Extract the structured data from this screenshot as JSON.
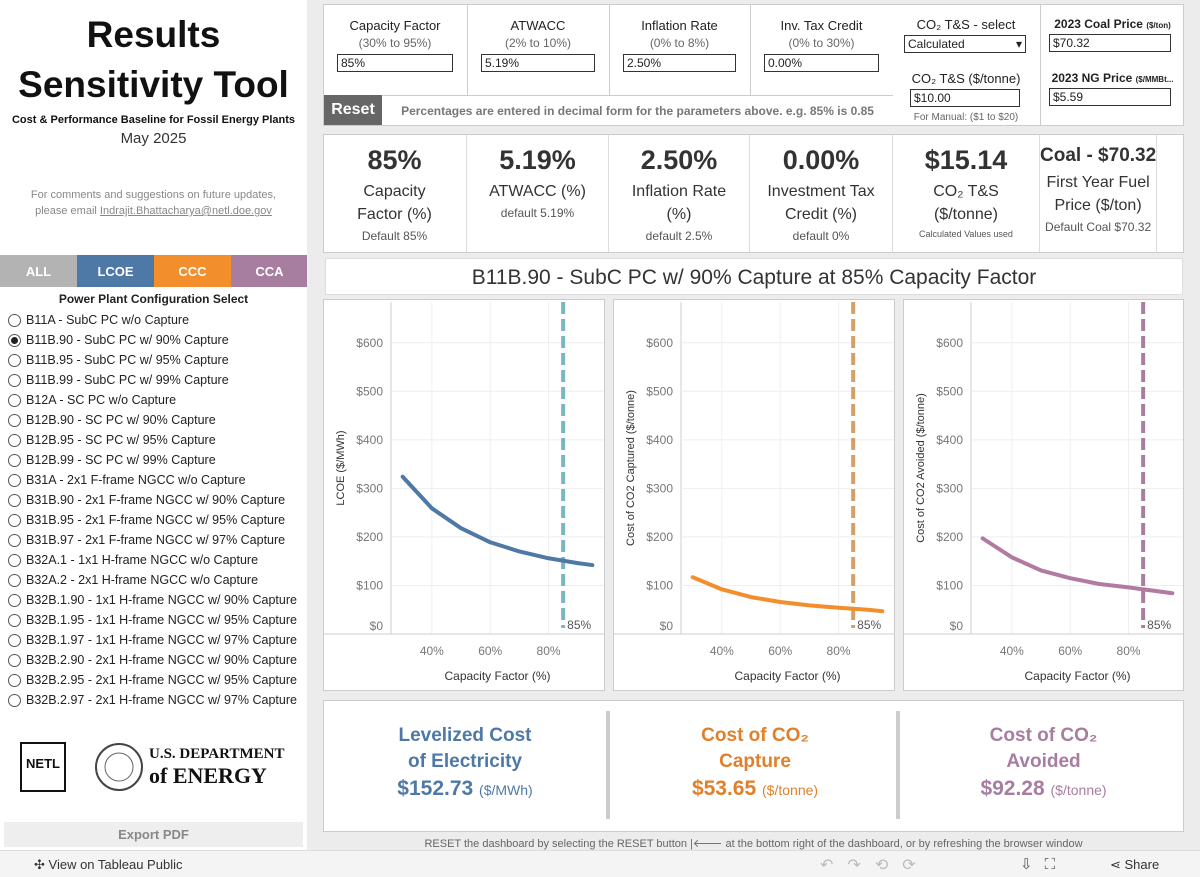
{
  "sidebar": {
    "title_line1": "Results",
    "title_line2": "Sensitivity Tool",
    "subtitle": "Cost & Performance Baseline for Fossil Energy Plants",
    "date": "May 2025",
    "comments": "For comments and suggestions on future updates,",
    "email_prefix": "please email",
    "email": "Indrajit.Bhattacharya@netl.doe.gov",
    "tabs": [
      "ALL",
      "LCOE",
      "CCC",
      "CCA"
    ],
    "config_title": "Power Plant Configuration Select",
    "options": [
      "B11A - SubC PC w/o Capture",
      "B11B.90 - SubC PC w/ 90% Capture",
      "B11B.95 - SubC PC w/ 95% Capture",
      "B11B.99 - SubC PC w/ 99% Capture",
      "B12A - SC PC w/o Capture",
      "B12B.90 - SC PC w/ 90% Capture",
      "B12B.95 - SC PC w/ 95% Capture",
      "B12B.99 - SC PC w/ 99% Capture",
      "B31A - 2x1 F-frame NGCC w/o Capture",
      "B31B.90 - 2x1 F-frame NGCC w/ 90% Capture",
      "B31B.95 - 2x1 F-frame NGCC w/ 95% Capture",
      "B31B.97 - 2x1 F-frame NGCC w/ 97% Capture",
      "B32A.1 - 1x1 H-frame NGCC w/o Capture",
      "B32A.2 - 2x1 H-frame NGCC w/o Capture",
      "B32B.1.90 - 1x1 H-frame NGCC w/ 90% Capture",
      "B32B.1.95 - 1x1 H-frame NGCC w/ 95% Capture",
      "B32B.1.97 - 1x1 H-frame NGCC w/ 97% Capture",
      "B32B.2.90 - 2x1 H-frame NGCC w/ 90% Capture",
      "B32B.2.95 - 2x1 H-frame NGCC w/ 95% Capture",
      "B32B.2.97 - 2x1 H-frame NGCC w/ 97% Capture"
    ],
    "selected": 1,
    "logo_netl": "NETL",
    "doe_line1": "U.S. DEPARTMENT",
    "doe_line2": "of ENERGY",
    "export": "Export PDF"
  },
  "inputs": {
    "fields": [
      {
        "label": "Capacity Factor",
        "range": "(30% to 95%)",
        "value": "85%"
      },
      {
        "label": "ATWACC",
        "range": "(2% to 10%)",
        "value": "5.19%"
      },
      {
        "label": "Inflation Rate",
        "range": "(0% to 8%)",
        "value": "2.50%"
      },
      {
        "label": "Inv. Tax Credit",
        "range": "(0% to 30%)",
        "value": "0.00%"
      }
    ],
    "co2_select_label": "CO₂ T&S - select",
    "co2_select_value": "Calculated",
    "co2_ts_label": "CO₂ T&S ($/tonne)",
    "co2_ts_value": "$10.00",
    "co2_manual_note": "For Manual: ($1 to $20)",
    "coal_label": "2023 Coal Price",
    "coal_unit": "($/ton)",
    "coal_value": "$70.32",
    "ng_label": "2023 NG Price",
    "ng_unit": "($/MMBt...",
    "ng_value": "$5.59",
    "reset": "Reset",
    "note": "Percentages are entered in decimal form for the parameters above. e.g. 85% is 0.85"
  },
  "summary": [
    {
      "value": "85%",
      "label": "Capacity Factor (%)",
      "note": "Default 85%"
    },
    {
      "value": "5.19%",
      "label": "ATWACC (%)",
      "note": "default 5.19%"
    },
    {
      "value": "2.50%",
      "label": "Inflation Rate (%)",
      "note": "default 2.5%"
    },
    {
      "value": "0.00%",
      "label": "Investment Tax Credit (%)",
      "note": "default 0%"
    },
    {
      "value": "$15.14",
      "label": "CO₂ T&S ($/tonne)",
      "note": "Calculated Values used"
    },
    {
      "value": "Coal - $70.32",
      "label": "First Year Fuel Price ($/ton)",
      "note": "Default Coal $70.32"
    }
  ],
  "dashboard_title": "B11B.90 - SubC PC w/ 90% Capture at 85% Capacity Factor",
  "chart_data": [
    {
      "type": "line",
      "ylabel": "LCOE ($/MWh)",
      "xlabel": "Capacity Factor (%)",
      "color": "#4e79a7",
      "x": [
        30,
        40,
        50,
        60,
        70,
        80,
        90,
        95
      ],
      "values": [
        324,
        259,
        218,
        189,
        170,
        156,
        146,
        142
      ],
      "xlim": [
        26,
        99
      ],
      "ylim": [
        0,
        684
      ],
      "xticks": [
        {
          "value": 40,
          "label": "40%"
        },
        {
          "value": 60,
          "label": "60%"
        },
        {
          "value": 80,
          "label": "80%"
        }
      ],
      "yticks": [
        {
          "value": 0,
          "label": "$0"
        },
        {
          "value": 100,
          "label": "$100"
        },
        {
          "value": 200,
          "label": "$200"
        },
        {
          "value": 300,
          "label": "$300"
        },
        {
          "value": 400,
          "label": "$400"
        },
        {
          "value": 500,
          "label": "$500"
        },
        {
          "value": 600,
          "label": "$600"
        }
      ],
      "grid": true,
      "ref_line": {
        "value": 85,
        "label": "85%"
      },
      "ref_color": "#76b7c2"
    },
    {
      "type": "line",
      "ylabel": "Cost of CO2 Captured ($/tonne)",
      "xlabel": "Capacity Factor (%)",
      "color": "#f28e2b",
      "x": [
        30,
        40,
        50,
        60,
        70,
        80,
        90,
        95
      ],
      "values": [
        117,
        92,
        76,
        66,
        59,
        54,
        50,
        47
      ],
      "xlim": [
        26,
        99
      ],
      "ylim": [
        0,
        684
      ],
      "xticks": [
        {
          "value": 40,
          "label": "40%"
        },
        {
          "value": 60,
          "label": "60%"
        },
        {
          "value": 80,
          "label": "80%"
        }
      ],
      "yticks": [
        {
          "value": 0,
          "label": "$0"
        },
        {
          "value": 100,
          "label": "$100"
        },
        {
          "value": 200,
          "label": "$200"
        },
        {
          "value": 300,
          "label": "$300"
        },
        {
          "value": 400,
          "label": "$400"
        },
        {
          "value": 500,
          "label": "$500"
        },
        {
          "value": 600,
          "label": "$600"
        }
      ],
      "grid": true,
      "ref_line": {
        "value": 85,
        "label": "85%"
      },
      "ref_color": "#d4a06a"
    },
    {
      "type": "line",
      "ylabel": "Cost of CO2 Avoided ($/tonne)",
      "xlabel": "Capacity Factor (%)",
      "color": "#b07aa1",
      "x": [
        30,
        40,
        50,
        60,
        70,
        80,
        90,
        95
      ],
      "values": [
        197,
        158,
        131,
        115,
        103,
        96,
        88,
        84
      ],
      "xlim": [
        26,
        99
      ],
      "ylim": [
        0,
        684
      ],
      "xticks": [
        {
          "value": 40,
          "label": "40%"
        },
        {
          "value": 60,
          "label": "60%"
        },
        {
          "value": 80,
          "label": "80%"
        }
      ],
      "yticks": [
        {
          "value": 0,
          "label": "$0"
        },
        {
          "value": 100,
          "label": "$100"
        },
        {
          "value": 200,
          "label": "$200"
        },
        {
          "value": 300,
          "label": "$300"
        },
        {
          "value": 400,
          "label": "$400"
        },
        {
          "value": 500,
          "label": "$500"
        },
        {
          "value": 600,
          "label": "$600"
        }
      ],
      "grid": true,
      "ref_line": {
        "value": 85,
        "label": "85%"
      },
      "ref_color": "#a77ea0"
    }
  ],
  "results": [
    {
      "title": "Levelized Cost of Electricity",
      "value": "$152.73",
      "unit": "($/MWh)",
      "color": "#4e79a7"
    },
    {
      "title": "Cost of CO₂ Capture",
      "value": "$53.65",
      "unit": "($/tonne)",
      "color": "#e0802a"
    },
    {
      "title": "Cost of CO₂ Avoided",
      "value": "$92.28",
      "unit": "($/tonne)",
      "color": "#a77ea0"
    }
  ],
  "footer_note": "RESET the dashboard by selecting the RESET button |🡐 at the bottom right of the dashboard, or by refreshing the browser window",
  "toolbar": {
    "view": "View on Tableau Public",
    "share": "Share"
  }
}
